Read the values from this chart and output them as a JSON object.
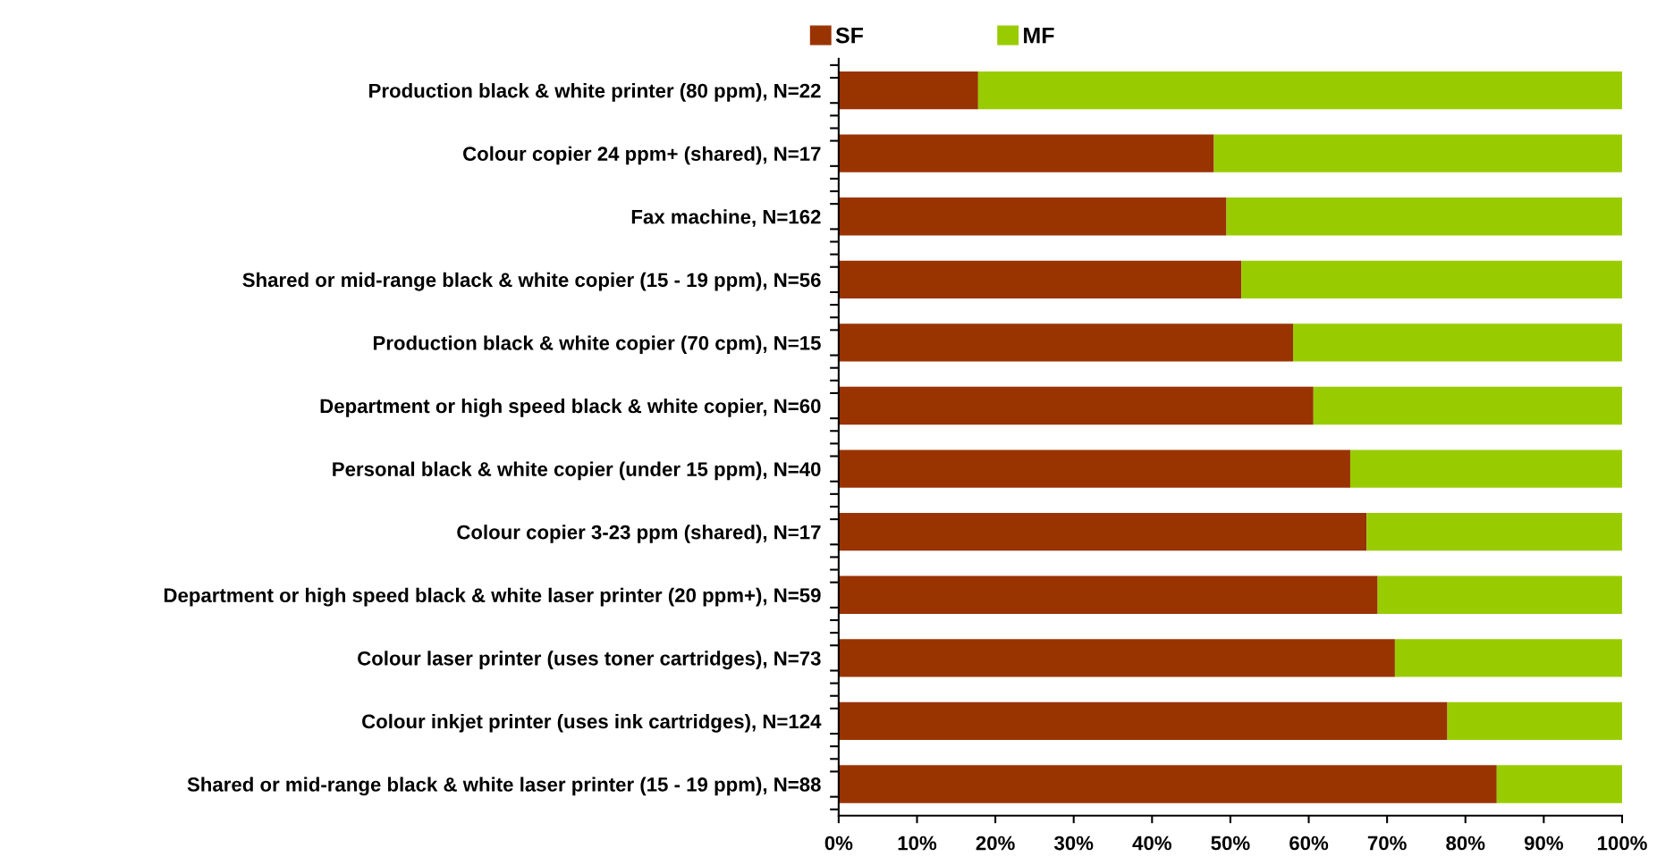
{
  "chart_data": {
    "type": "bar",
    "orientation": "horizontal",
    "stacked": true,
    "categories": [
      "Production black & white printer (80 ppm), N=22",
      "Colour copier 24 ppm+ (shared), N=17",
      "Fax machine, N=162",
      "Shared or mid-range black & white copier (15 - 19 ppm), N=56",
      "Production black & white copier (70 cpm), N=15",
      "Department or high speed black & white copier, N=60",
      "Personal black & white copier (under 15 ppm), N=40",
      "Colour copier 3-23 ppm (shared), N=17",
      "Department or high speed black & white laser printer (20 ppm+), N=59",
      "Colour laser printer (uses toner cartridges), N=73",
      "Colour inkjet printer (uses ink cartridges), N=124",
      "Shared or mid-range black & white laser printer (15 - 19 ppm), N=88"
    ],
    "series": [
      {
        "name": "SF",
        "color": "#993300",
        "values": [
          17.8,
          47.9,
          49.5,
          51.4,
          58.0,
          60.6,
          65.3,
          67.4,
          68.8,
          71.0,
          77.7,
          84.0
        ]
      },
      {
        "name": "MF",
        "color": "#99cc00",
        "values": [
          82.2,
          52.1,
          50.5,
          48.6,
          42.0,
          39.4,
          34.7,
          32.6,
          31.2,
          29.0,
          22.3,
          16.0
        ]
      }
    ],
    "xlim": [
      0,
      100
    ],
    "xticks": [
      {
        "value": 0,
        "label": "0%"
      },
      {
        "value": 10,
        "label": "10%"
      },
      {
        "value": 20,
        "label": "20%"
      },
      {
        "value": 30,
        "label": "30%"
      },
      {
        "value": 40,
        "label": "40%"
      },
      {
        "value": 50,
        "label": "50%"
      },
      {
        "value": 60,
        "label": "60%"
      },
      {
        "value": 70,
        "label": "70%"
      },
      {
        "value": 80,
        "label": "80%"
      },
      {
        "value": 90,
        "label": "90%"
      },
      {
        "value": 100,
        "label": "100%"
      }
    ],
    "grid": false,
    "legend": "top"
  }
}
